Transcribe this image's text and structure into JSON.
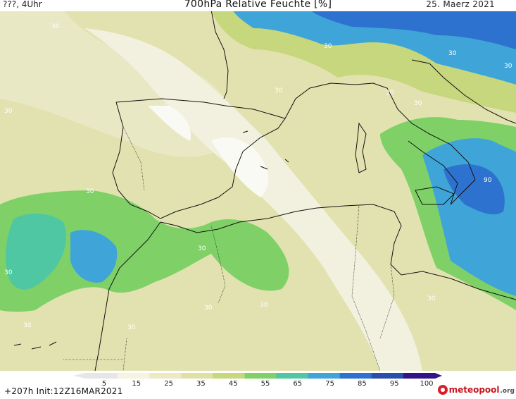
{
  "header": {
    "left": "???, 4Uhr",
    "title": "700hPa Relative Feuchte [%]",
    "date": "25. Maerz 2021"
  },
  "contour_labels": [
    "30",
    "30",
    "30",
    "30",
    "30",
    "30",
    "30",
    "30",
    "30",
    "30",
    "30",
    "30",
    "30",
    "30",
    "30",
    "30",
    "90"
  ],
  "colorbar": {
    "tick_labels": [
      "5",
      "15",
      "25",
      "35",
      "45",
      "55",
      "65",
      "75",
      "85",
      "95",
      "100"
    ],
    "colors": [
      "#e6e6e6",
      "#f6f4e0",
      "#ece9c3",
      "#dfe0a4",
      "#c6d77d",
      "#7fd167",
      "#4fc7a2",
      "#3fa5d8",
      "#2e72cf",
      "#2a4eab",
      "#34128a"
    ]
  },
  "footer": {
    "init": "+207h  Init:12Z16MAR2021",
    "logo_name": "meteopool",
    "logo_tld": ".org"
  }
}
